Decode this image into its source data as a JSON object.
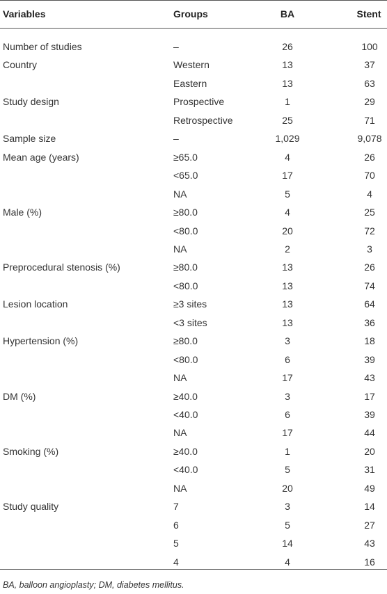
{
  "table": {
    "header": [
      "Variables",
      "Groups",
      "BA",
      "Stent"
    ],
    "sections": [
      {
        "variable": "Number of studies",
        "rows": [
          [
            "–",
            "26",
            "100"
          ]
        ]
      },
      {
        "variable": "Country",
        "rows": [
          [
            "Western",
            "13",
            "37"
          ],
          [
            "Eastern",
            "13",
            "63"
          ]
        ]
      },
      {
        "variable": "Study design",
        "rows": [
          [
            "Prospective",
            "1",
            "29"
          ],
          [
            "Retrospective",
            "25",
            "71"
          ]
        ]
      },
      {
        "variable": "Sample size",
        "rows": [
          [
            "–",
            "1,029",
            "9,078"
          ]
        ]
      },
      {
        "variable": "Mean age (years)",
        "rows": [
          [
            "≥65.0",
            "4",
            "26"
          ],
          [
            "<65.0",
            "17",
            "70"
          ],
          [
            "NA",
            "5",
            "4"
          ]
        ]
      },
      {
        "variable": "Male (%)",
        "rows": [
          [
            "≥80.0",
            "4",
            "25"
          ],
          [
            "<80.0",
            "20",
            "72"
          ],
          [
            "NA",
            "2",
            "3"
          ]
        ]
      },
      {
        "variable": "Preprocedural stenosis (%)",
        "rows": [
          [
            "≥80.0",
            "13",
            "26"
          ],
          [
            "<80.0",
            "13",
            "74"
          ]
        ]
      },
      {
        "variable": "Lesion location",
        "rows": [
          [
            "≥3 sites",
            "13",
            "64"
          ],
          [
            "<3 sites",
            "13",
            "36"
          ]
        ]
      },
      {
        "variable": "Hypertension (%)",
        "rows": [
          [
            "≥80.0",
            "3",
            "18"
          ],
          [
            "<80.0",
            "6",
            "39"
          ],
          [
            "NA",
            "17",
            "43"
          ]
        ]
      },
      {
        "variable": "DM (%)",
        "rows": [
          [
            "≥40.0",
            "3",
            "17"
          ],
          [
            "<40.0",
            "6",
            "39"
          ],
          [
            "NA",
            "17",
            "44"
          ]
        ]
      },
      {
        "variable": "Smoking (%)",
        "rows": [
          [
            "≥40.0",
            "1",
            "20"
          ],
          [
            "<40.0",
            "5",
            "31"
          ],
          [
            "NA",
            "20",
            "49"
          ]
        ]
      },
      {
        "variable": "Study quality",
        "rows": [
          [
            "7",
            "3",
            "14"
          ],
          [
            "6",
            "5",
            "27"
          ],
          [
            "5",
            "14",
            "43"
          ],
          [
            "4",
            "4",
            "16"
          ]
        ]
      }
    ],
    "footnote": "BA, balloon angioplasty; DM, diabetes mellitus."
  }
}
